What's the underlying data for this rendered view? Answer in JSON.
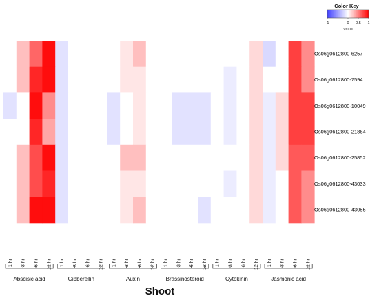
{
  "chart_data": {
    "type": "heatmap",
    "xlabel": "Shoot",
    "groups": [
      "Abscisic acid",
      "Gibberellin",
      "Auxin",
      "Brassinosteroid",
      "Cytokinin",
      "Jasmonic acid"
    ],
    "timepoints": [
      "1 hr",
      "3 hr",
      "6 hr",
      "12 hr"
    ],
    "rows": [
      "Os06g0612800-6257",
      "Os06g0612800-7594",
      "Os06g0612800-10049",
      "Os06g0612800-21864",
      "Os06g0612800-25852",
      "Os06g0612800-43033",
      "Os06g0612800-43055"
    ],
    "values": [
      [
        0,
        0.25,
        0.6,
        0.95,
        -0.15,
        0,
        0,
        0,
        0,
        0.1,
        0.25,
        0,
        0,
        0,
        0,
        0,
        0,
        0,
        0,
        0.15,
        -0.2,
        0,
        0.75,
        0.45
      ],
      [
        0,
        0.25,
        0.85,
        0.95,
        -0.15,
        0,
        0,
        0,
        0,
        0.1,
        0.1,
        0,
        0,
        0,
        0,
        0,
        0,
        -0.1,
        0,
        0.15,
        0,
        0,
        0.75,
        0.45
      ],
      [
        -0.15,
        0,
        0.95,
        0.45,
        -0.15,
        0,
        0,
        0,
        -0.15,
        0,
        0.1,
        0,
        0,
        -0.15,
        -0.15,
        -0.15,
        0,
        -0.1,
        0,
        0.15,
        -0.1,
        0.15,
        0.75,
        0.75
      ],
      [
        0,
        0,
        0.85,
        0.35,
        -0.15,
        0,
        0,
        0,
        -0.15,
        0,
        0.1,
        0,
        0,
        -0.15,
        -0.15,
        -0.15,
        0,
        -0.1,
        0,
        0.15,
        -0.1,
        0.15,
        0.75,
        0.75
      ],
      [
        0,
        0.25,
        0.7,
        0.95,
        -0.15,
        0,
        0,
        0,
        0,
        0.25,
        0.25,
        0,
        0,
        0,
        0,
        0,
        0,
        0,
        0,
        0.15,
        -0.1,
        0.15,
        0.65,
        0.65
      ],
      [
        0,
        0.25,
        0.7,
        0.85,
        -0.15,
        0,
        0,
        0,
        0,
        0.1,
        0.1,
        0,
        0,
        0,
        0,
        0,
        0,
        -0.1,
        0,
        0.15,
        -0.1,
        0,
        0.65,
        0.45
      ],
      [
        0,
        0.25,
        0.95,
        0.95,
        -0.15,
        0,
        0,
        0,
        0,
        0.1,
        0.25,
        0,
        0,
        0,
        0,
        -0.15,
        0,
        0,
        0,
        0.15,
        -0.1,
        0,
        0.65,
        0.45
      ]
    ],
    "value_range": [
      -1,
      1
    ],
    "colors": {
      "low": "#4040ff",
      "mid": "#ffffff",
      "high": "#ff0000"
    },
    "color_key": {
      "title": "Color Key",
      "ticks": [
        "-1",
        "0",
        "0.5",
        "1"
      ],
      "subtitle": "Value"
    }
  }
}
